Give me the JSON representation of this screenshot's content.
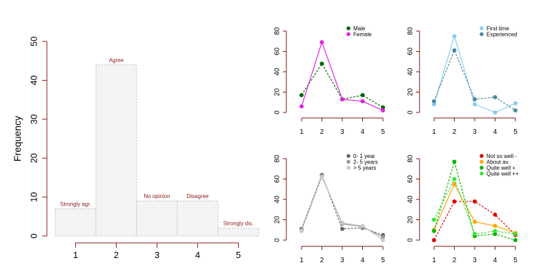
{
  "colors": {
    "axis": "#8b1a1a",
    "small_axis": "#7a1010",
    "bar_fill": "#f4f4f4",
    "bar_stroke": "#bbbbbb",
    "annotation": "#8b1a1a"
  },
  "chart_data": [
    {
      "type": "bar",
      "ylabel": "Frequency",
      "categories": [
        "1",
        "2",
        "3",
        "4",
        "5"
      ],
      "values": [
        7,
        44,
        9,
        9,
        2
      ],
      "annotations": [
        "Strongly agr.",
        "Agree",
        "No opinion",
        "Disagree",
        "Strongly dis."
      ],
      "ylim": [
        0,
        50
      ],
      "yticks": [
        0,
        10,
        20,
        30,
        40,
        50
      ]
    },
    {
      "type": "line",
      "x": [
        1,
        2,
        3,
        4,
        5
      ],
      "ylim": [
        0,
        80
      ],
      "yticks": [
        0,
        20,
        40,
        60,
        80
      ],
      "legend": "top-right",
      "series": [
        {
          "name": "Male",
          "color": "#006400",
          "dash": true,
          "values": [
            17,
            48,
            13,
            17,
            5
          ]
        },
        {
          "name": "Female",
          "color": "#e020e0",
          "dash": false,
          "values": [
            6,
            69,
            13,
            11,
            2
          ]
        }
      ]
    },
    {
      "type": "line",
      "x": [
        1,
        2,
        3,
        4,
        5
      ],
      "ylim": [
        0,
        80
      ],
      "yticks": [
        0,
        20,
        40,
        60,
        80
      ],
      "legend": "top-right",
      "series": [
        {
          "name": "First time",
          "color": "#87ceeb",
          "dash": false,
          "values": [
            8,
            75,
            8,
            0,
            9
          ]
        },
        {
          "name": "Experienced",
          "color": "#4a8a99",
          "dash": true,
          "values": [
            11,
            61,
            13,
            15,
            2
          ]
        }
      ]
    },
    {
      "type": "line",
      "x": [
        1,
        2,
        3,
        4,
        5
      ],
      "ylim": [
        0,
        80
      ],
      "yticks": [
        0,
        20,
        40,
        60,
        80
      ],
      "legend": "top-right",
      "series": [
        {
          "name": "0- 1 year",
          "color": "#666666",
          "dash": true,
          "values": [
            11,
            64,
            11,
            12,
            5
          ]
        },
        {
          "name": "2- 5 years",
          "color": "#999999",
          "dash": false,
          "values": [
            10,
            63,
            16,
            13,
            3
          ]
        },
        {
          "name": "> 5 years",
          "color": "#c8c8c8",
          "dash": false,
          "values": [
            9,
            62,
            17,
            14,
            0
          ]
        }
      ]
    },
    {
      "type": "line",
      "x": [
        1,
        2,
        3,
        4,
        5
      ],
      "ylim": [
        0,
        80
      ],
      "yticks": [
        0,
        20,
        40,
        60,
        80
      ],
      "legend": "top-right",
      "series": [
        {
          "name": "Not so well -",
          "color": "#e00000",
          "dash": true,
          "values": [
            0,
            38,
            38,
            25,
            5
          ]
        },
        {
          "name": "About av.",
          "color": "#ffa500",
          "dash": false,
          "values": [
            10,
            55,
            18,
            14,
            7
          ]
        },
        {
          "name": "Quite well +",
          "color": "#00b400",
          "dash": true,
          "values": [
            9,
            77,
            4,
            6,
            0
          ]
        },
        {
          "name": "Quite well ++",
          "color": "#32e632",
          "dash": true,
          "values": [
            20,
            60,
            6,
            9,
            6
          ]
        }
      ]
    }
  ]
}
